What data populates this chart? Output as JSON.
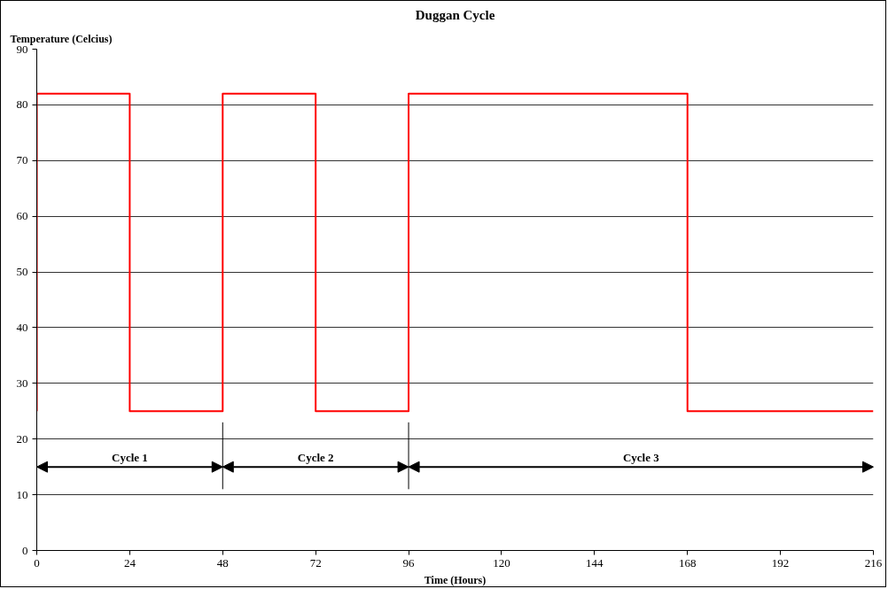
{
  "chart_data": {
    "type": "line",
    "title": "Duggan Cycle",
    "ylabel": "Temperature (Celcius)",
    "xlabel": "Time (Hours)",
    "x": [
      0,
      0,
      24,
      24,
      48,
      48,
      72,
      72,
      96,
      96,
      168,
      168,
      216
    ],
    "series": [
      {
        "color": "#ff0000",
        "values": [
          25,
          82,
          82,
          25,
          25,
          82,
          82,
          25,
          25,
          82,
          82,
          25,
          25
        ]
      }
    ],
    "xlim": [
      0,
      216
    ],
    "xticks": [
      0,
      24,
      48,
      72,
      96,
      120,
      144,
      168,
      192,
      216
    ],
    "ylim": [
      0,
      90
    ],
    "yticks": [
      0,
      10,
      20,
      30,
      40,
      50,
      60,
      70,
      80,
      90
    ],
    "grid": "y",
    "marker": "none",
    "line_style": "solid",
    "ref_lines": [
      {
        "axis": "x",
        "value": 48,
        "color": "#000000"
      },
      {
        "axis": "x",
        "value": 96,
        "color": "#000000"
      }
    ],
    "annotations": [
      "Cycle 1",
      "Cycle 2",
      "Cycle 3"
    ]
  }
}
